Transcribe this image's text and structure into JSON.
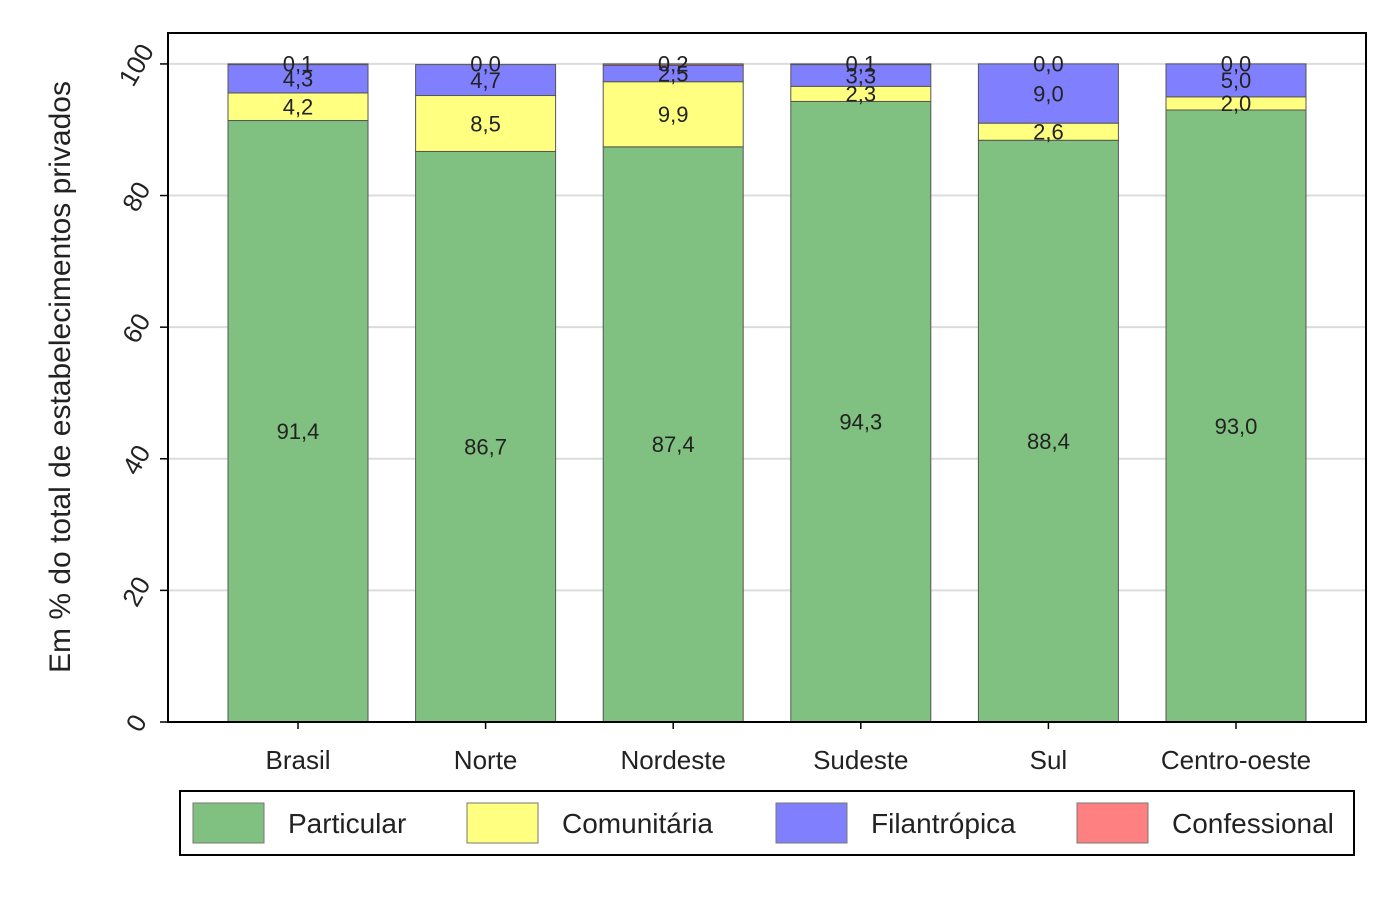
{
  "chart_data": {
    "type": "bar",
    "stacked": true,
    "title": "",
    "xlabel": "",
    "ylabel": "Em % do total de estabelecimentos privados",
    "ylim": [
      0,
      100
    ],
    "yticks": [
      "0",
      "20",
      "40",
      "60",
      "80",
      "100"
    ],
    "grid": true,
    "legend_position": "bottom",
    "categories": [
      "Brasil",
      "Norte",
      "Nordeste",
      "Sudeste",
      "Sul",
      "Centro-oeste"
    ],
    "series": [
      {
        "name": "Particular",
        "color": "#80c080",
        "values": [
          91.4,
          86.7,
          87.4,
          94.3,
          88.4,
          93.0
        ],
        "labels": [
          "91,4",
          "86,7",
          "87,4",
          "94,3",
          "88,4",
          "93,0"
        ]
      },
      {
        "name": "Comunitária",
        "color": "#ffff80",
        "values": [
          4.2,
          8.5,
          9.9,
          2.3,
          2.6,
          2.0
        ],
        "labels": [
          "4,2",
          "8,5",
          "9,9",
          "2,3",
          "2,6",
          "2,0"
        ]
      },
      {
        "name": "Filantrópica",
        "color": "#8080ff",
        "values": [
          4.3,
          4.7,
          2.5,
          3.3,
          9.0,
          5.0
        ],
        "labels": [
          "4,3",
          "4,7",
          "2,5",
          "3,3",
          "9,0",
          "5,0"
        ]
      },
      {
        "name": "Confessional",
        "color": "#ff8080",
        "values": [
          0.1,
          0.0,
          0.2,
          0.1,
          0.0,
          0.0
        ],
        "labels": [
          "0,1",
          "0,0",
          "0,2",
          "0,1",
          "0,0",
          "0,0"
        ]
      }
    ]
  }
}
